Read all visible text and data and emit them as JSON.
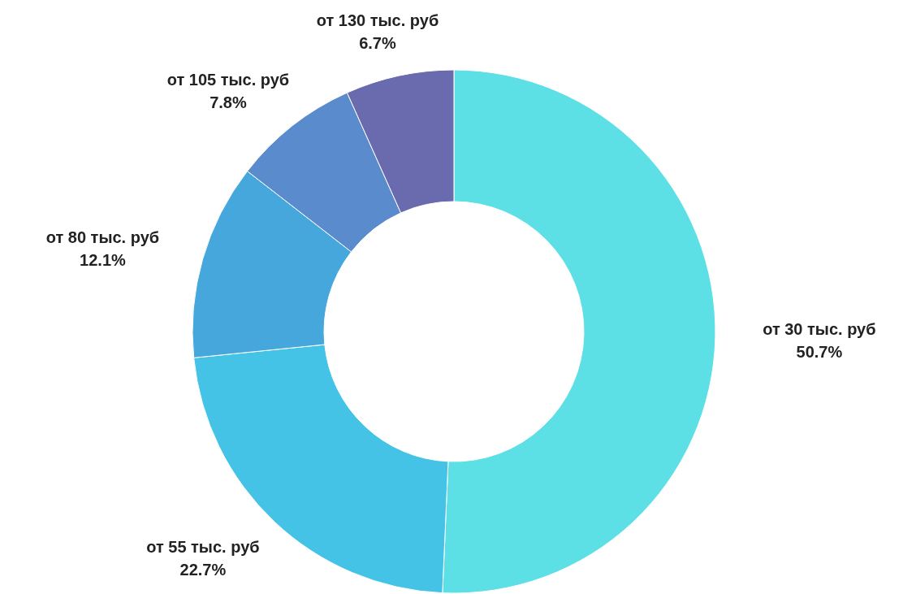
{
  "chart_data": {
    "type": "donut",
    "categories": [
      "от 30 тыс. руб",
      "от 55 тыс. руб",
      "от 80 тыс. руб",
      "от 105 тыс. руб",
      "от 130 тыс. руб"
    ],
    "values": [
      50.7,
      22.7,
      12.1,
      7.8,
      6.7
    ],
    "colors": [
      "#5ddfe6",
      "#45c3e6",
      "#45a7db",
      "#5a8bcc",
      "#6a6aae"
    ],
    "value_labels": [
      "50.7%",
      "22.7%",
      "12.1%",
      "7.8%",
      "6.7%"
    ]
  }
}
